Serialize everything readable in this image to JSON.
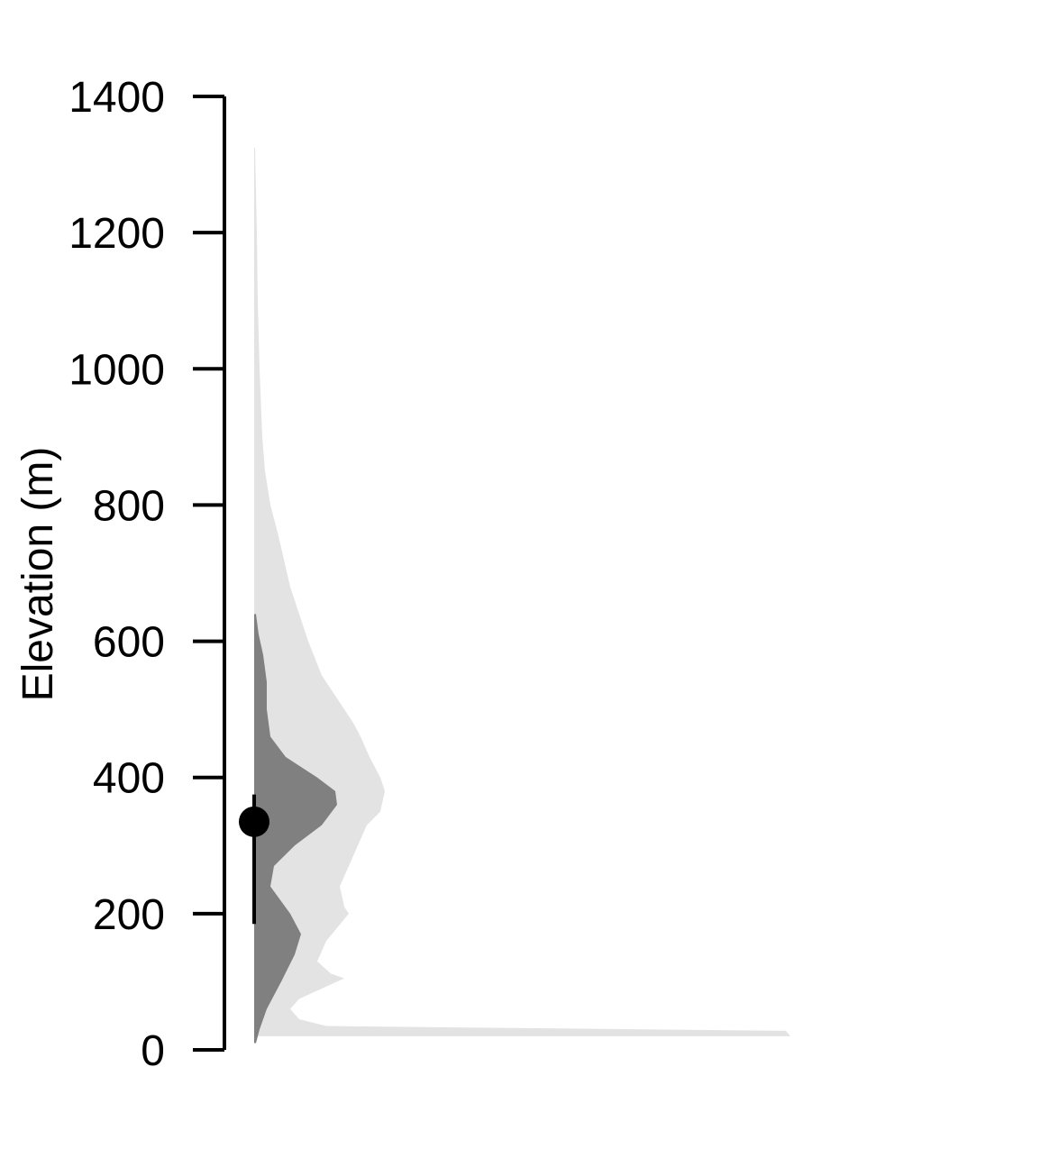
{
  "chart_data": {
    "type": "area",
    "title": "",
    "xlabel": "",
    "ylabel": "Elevation (m)",
    "ylim": [
      0,
      1400
    ],
    "yticks": [
      0,
      200,
      400,
      600,
      800,
      1000,
      1200,
      1400
    ],
    "grid": false,
    "legend": "none",
    "series": [
      {
        "kind": "density",
        "color": "#e3e3e3",
        "y": [
          20,
          28,
          35,
          45,
          60,
          75,
          90,
          105,
          112,
          130,
          160,
          200,
          210,
          240,
          270,
          300,
          330,
          350,
          380,
          400,
          430,
          460,
          480,
          520,
          550,
          600,
          640,
          680,
          720,
          760,
          800,
          850,
          900,
          1000,
          1100,
          1200,
          1260,
          1325
        ],
        "width": [
          595,
          590,
          80,
          50,
          40,
          50,
          75,
          100,
          85,
          70,
          80,
          105,
          100,
          95,
          105,
          115,
          125,
          140,
          145,
          140,
          128,
          118,
          110,
          90,
          75,
          60,
          50,
          40,
          33,
          26,
          18,
          12,
          9,
          6,
          4,
          3,
          2,
          1
        ]
      },
      {
        "kind": "density",
        "color": "#808080",
        "y": [
          10,
          30,
          60,
          100,
          140,
          170,
          200,
          240,
          270,
          300,
          330,
          360,
          380,
          400,
          430,
          460,
          500,
          540,
          580,
          610,
          640
        ],
        "width": [
          2,
          6,
          14,
          30,
          45,
          52,
          40,
          18,
          22,
          45,
          75,
          92,
          90,
          70,
          35,
          18,
          14,
          14,
          10,
          5,
          2
        ]
      }
    ],
    "point": {
      "y": 335,
      "lower": 185,
      "upper": 375,
      "color": "#000000"
    }
  }
}
